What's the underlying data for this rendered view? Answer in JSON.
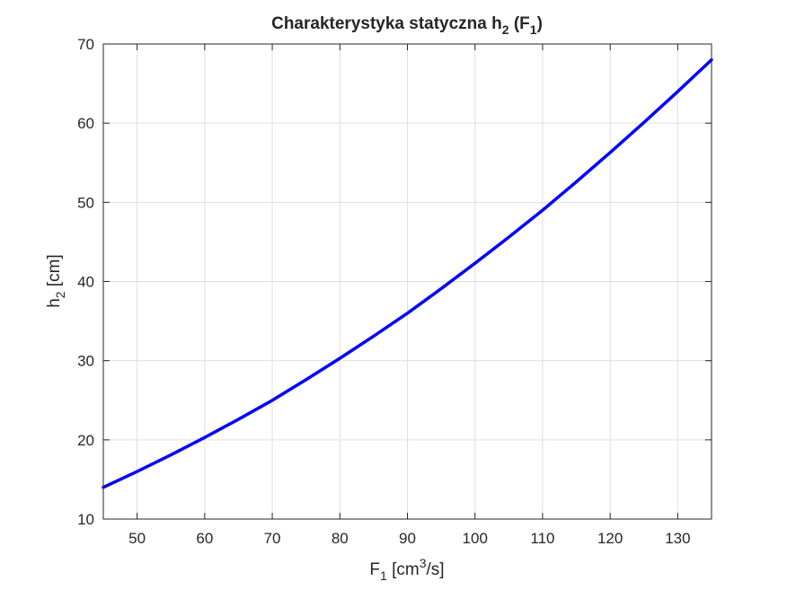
{
  "chart_data": {
    "type": "line",
    "title": {
      "main": "Charakterystyka statyczna h",
      "sub1": "2",
      "mid": " (F",
      "sub2": "1",
      "end": ")"
    },
    "xlabel": {
      "main": "F",
      "sub": "1",
      "rest": " [cm",
      "sup": "3",
      "end": "/s]"
    },
    "ylabel": {
      "main": "h",
      "sub": "2",
      "rest": " [cm]"
    },
    "xlim": [
      45,
      135
    ],
    "ylim": [
      10,
      70
    ],
    "xticks": [
      50,
      60,
      70,
      80,
      90,
      100,
      110,
      120,
      130
    ],
    "yticks": [
      10,
      20,
      30,
      40,
      50,
      60,
      70
    ],
    "grid": true,
    "series": [
      {
        "color": "#0000ff",
        "x": [
          45,
          50,
          55,
          60,
          65,
          70,
          75,
          80,
          85,
          90,
          95,
          100,
          105,
          110,
          115,
          120,
          125,
          130,
          135
        ],
        "y": [
          14.0,
          16.0,
          18.1,
          20.3,
          22.6,
          25.0,
          27.6,
          30.3,
          33.1,
          36.0,
          39.1,
          42.3,
          45.6,
          49.0,
          52.6,
          56.3,
          60.1,
          64.0,
          68.0
        ]
      }
    ]
  }
}
